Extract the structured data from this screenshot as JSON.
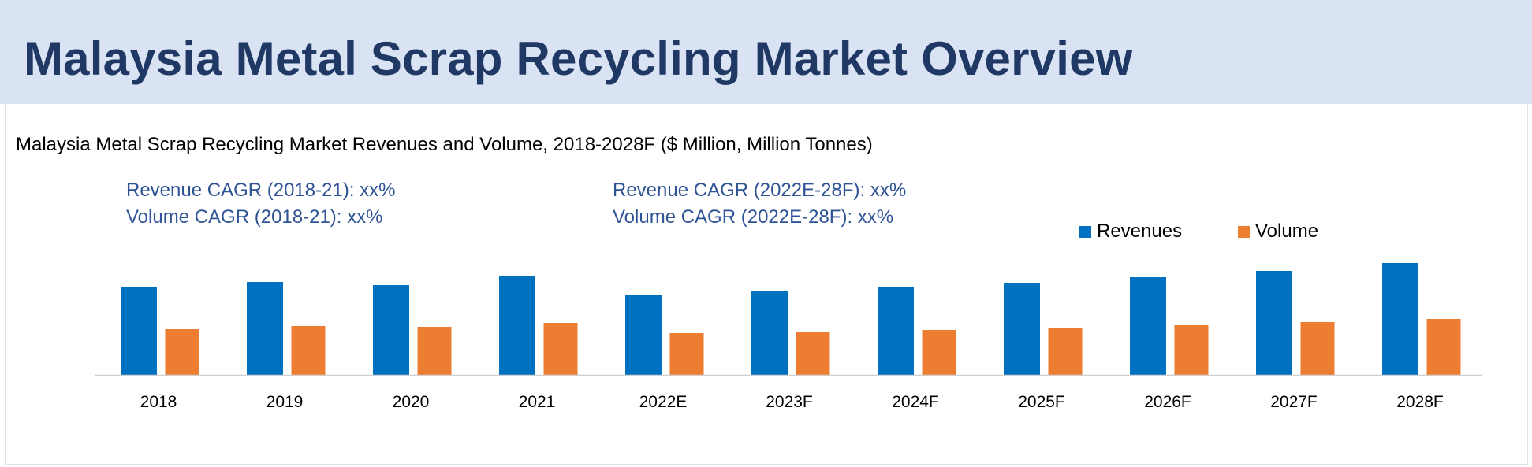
{
  "page": {
    "title": "Malaysia Metal Scrap Recycling Market Overview",
    "subtitle": "Malaysia Metal Scrap Recycling Market Revenues and Volume, 2018-2028F ($ Million, Million Tonnes)"
  },
  "cagr": {
    "left": [
      "Revenue CAGR (2018-21): xx%",
      "Volume CAGR (2018-21): xx%"
    ],
    "right": [
      "Revenue CAGR (2022E-28F): xx%",
      "Volume CAGR (2022E-28F): xx%"
    ]
  },
  "chart_data": {
    "type": "bar",
    "categories": [
      "2018",
      "2019",
      "2020",
      "2021",
      "2022E",
      "2023F",
      "2024F",
      "2025F",
      "2026F",
      "2027F",
      "2028F"
    ],
    "series": [
      {
        "name": "Revenues",
        "color": "#0070c0",
        "values": [
          112,
          118,
          114,
          126,
          102,
          106,
          111,
          117,
          124,
          132,
          142
        ]
      },
      {
        "name": "Volume",
        "color": "#ed7d31",
        "values": [
          58,
          62,
          61,
          66,
          53,
          55,
          57,
          60,
          63,
          67,
          71
        ]
      }
    ],
    "ylim": [
      0,
      150
    ],
    "legend_position": "top-right",
    "grid": false,
    "xlabel": "",
    "ylabel": ""
  }
}
